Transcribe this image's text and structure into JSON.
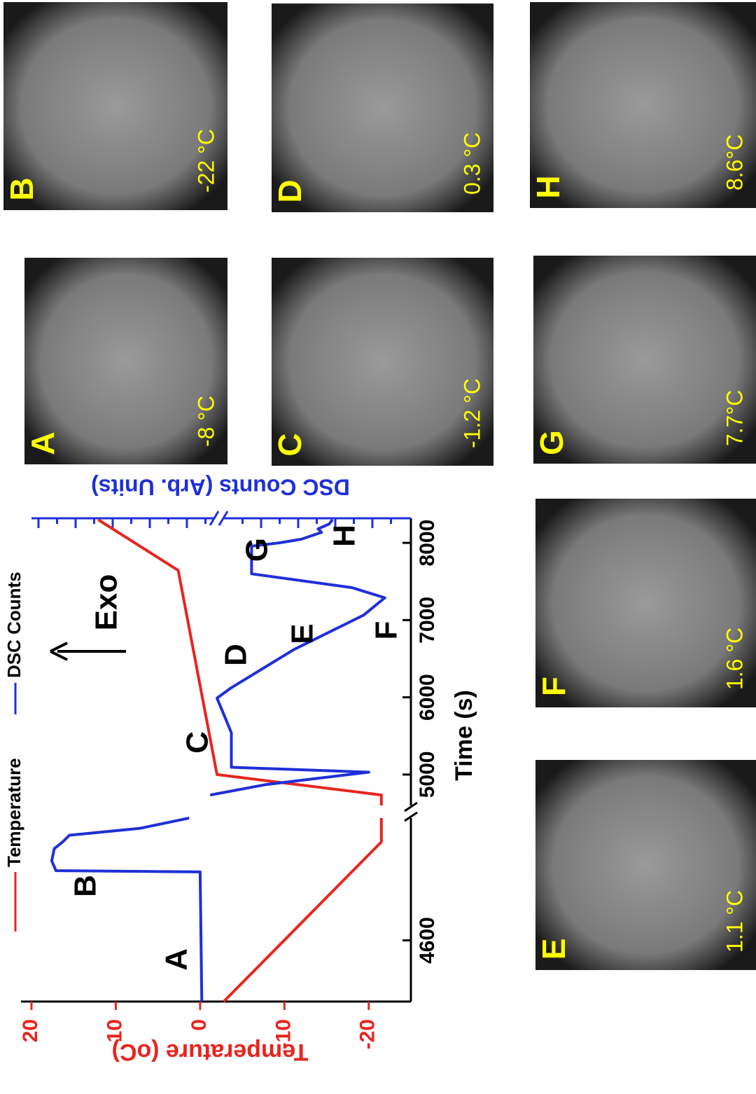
{
  "chart_data": {
    "type": "line",
    "x_label": "Time (s)",
    "y_label": "Temperature (oC)",
    "y2_label": "DSC Counts (Arb. Units)",
    "ylim": [
      -25,
      20
    ],
    "yticks": [
      -20,
      -10,
      0,
      10,
      20
    ],
    "x_segments": [
      {
        "xlim": [
          4500,
          4800
        ],
        "xticks": [
          4600
        ]
      },
      {
        "xlim": [
          4600,
          8300
        ],
        "xticks": [
          5000,
          6000,
          7000,
          8000
        ]
      }
    ],
    "annotation": "Exo",
    "point_labels": [
      "A",
      "B",
      "C",
      "D",
      "E",
      "F",
      "G",
      "H"
    ],
    "series": [
      {
        "name": "Temperature",
        "color": "#e8251f",
        "segments": [
          {
            "x": [
              4500,
              4761,
              4800
            ],
            "values": [
              -2.8,
              -21.5,
              -21.5
            ]
          },
          {
            "x": [
              4600,
              4735,
              5000,
              7643,
              8300
            ],
            "values": [
              -21.5,
              -21.5,
              -2,
              2.6,
              12.1
            ]
          }
        ]
      },
      {
        "name": "DSC Counts",
        "color": "#1f2fd8",
        "segments": [
          {
            "x": [
              4500,
              4712,
              4714,
              4730,
              4750,
              4761,
              4772,
              4783,
              4800
            ],
            "values": [
              -0.2,
              0,
              17.1,
              17.6,
              17.3,
              16.3,
              15.5,
              7.2,
              1.3
            ]
          },
          {
            "x": [
              4735,
              4870,
              5031,
              5094,
              5542,
              5990,
              6124,
              6617,
              7065,
              7289,
              7420,
              7599,
              7957,
              8002,
              8047,
              8136,
              8181,
              8244,
              8300
            ],
            "values": [
              -1.2,
              -7.8,
              -20,
              -3.7,
              -3.7,
              -2,
              -3.7,
              -11.1,
              -19.4,
              -21.9,
              -18,
              -6.1,
              -6.1,
              -9.5,
              -12,
              -14.4,
              -14,
              -15.3,
              -15.7
            ]
          }
        ]
      }
    ]
  },
  "panels": [
    {
      "letter": "A",
      "temperature": "-8 °C"
    },
    {
      "letter": "B",
      "temperature": "-22 °C"
    },
    {
      "letter": "C",
      "temperature": "-1.2 °C"
    },
    {
      "letter": "D",
      "temperature": "0.3 °C"
    },
    {
      "letter": "E",
      "temperature": "1.1 °C"
    },
    {
      "letter": "F",
      "temperature": "1.6 °C"
    },
    {
      "letter": "G",
      "temperature": "7.7°C"
    },
    {
      "letter": "H",
      "temperature": "8.6°C"
    }
  ]
}
